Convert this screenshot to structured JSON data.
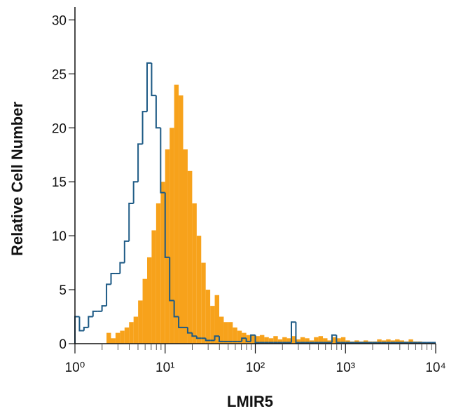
{
  "chart_data": {
    "type": "histogram",
    "xlabel": "LMIR5",
    "ylabel": "Relative Cell Number",
    "xscale": "log",
    "xlim": [
      1,
      10000
    ],
    "ylim": [
      0,
      31
    ],
    "xticks": [
      {
        "value": 1,
        "label": "10⁰"
      },
      {
        "value": 10,
        "label": "10¹"
      },
      {
        "value": 100,
        "label": "10²"
      },
      {
        "value": 1000,
        "label": "10³"
      },
      {
        "value": 10000,
        "label": "10⁴"
      }
    ],
    "yticks": [
      0,
      5,
      10,
      15,
      20,
      25,
      30
    ],
    "bins": [
      1,
      1.122,
      1.259,
      1.413,
      1.585,
      1.778,
      1.995,
      2.239,
      2.512,
      2.818,
      3.162,
      3.548,
      3.981,
      4.467,
      5.012,
      5.623,
      6.31,
      7.079,
      7.943,
      8.913,
      10,
      11.22,
      12.59,
      14.13,
      15.85,
      17.78,
      19.95,
      22.39,
      25.12,
      28.18,
      31.62,
      35.48,
      39.81,
      44.67,
      50.12,
      56.23,
      63.1,
      70.79,
      79.43,
      89.13,
      100,
      112.2,
      125.9,
      141.3,
      158.5,
      177.8,
      199.5,
      223.9,
      251.2,
      281.8,
      316.2,
      354.8,
      398.1,
      446.7,
      501.2,
      562.3,
      631,
      707.9,
      794.3,
      891.3,
      1000,
      1122,
      1259,
      1413,
      1585,
      1778,
      1995,
      2239,
      2512,
      2818,
      3162,
      3548,
      3981,
      4467,
      5012,
      5623,
      6310,
      7079,
      7943,
      8913,
      10000
    ],
    "series": [
      {
        "style": "filled",
        "color": "#f7a21b",
        "values": [
          0,
          0,
          0,
          0,
          0,
          0,
          0,
          1,
          0.5,
          1,
          1.2,
          1.5,
          2,
          2.5,
          4,
          6,
          8,
          10.5,
          13,
          15,
          18,
          20,
          24,
          23,
          18,
          16,
          13,
          10,
          7.5,
          5,
          3.5,
          4.5,
          2.5,
          2,
          2,
          1.5,
          1.2,
          1,
          0.8,
          0.8,
          0.7,
          0.8,
          0.6,
          0.5,
          0.7,
          0.4,
          0.6,
          0.5,
          0.7,
          0.4,
          0.6,
          0.5,
          0.3,
          0.6,
          0.7,
          0.5,
          0.3,
          0.6,
          0.5,
          0.6,
          0.3,
          0.2,
          0.3,
          0.2,
          0.3,
          0.2,
          0.2,
          0.4,
          0.3,
          0.4,
          0.3,
          0.4,
          0.3,
          0.2,
          0.4,
          0.2,
          0.2,
          0.1,
          0.1,
          0.1
        ]
      },
      {
        "style": "outline",
        "color": "#1d5a85",
        "values": [
          2.5,
          1.2,
          1.5,
          2.5,
          3,
          3,
          3.5,
          5.5,
          6.5,
          6.5,
          7.5,
          9.5,
          13,
          15,
          18.5,
          21.5,
          26,
          23,
          20,
          14,
          8,
          4,
          2.5,
          1.5,
          1.5,
          1,
          0.7,
          0.5,
          0.5,
          0.3,
          0.3,
          0.7,
          0.2,
          0.2,
          0.2,
          0.2,
          0.2,
          0.5,
          0.2,
          0.8,
          0.1,
          0.1,
          0.1,
          0.1,
          0.1,
          0.1,
          0.1,
          0.1,
          2,
          0.1,
          0.1,
          0.1,
          0.1,
          0.1,
          0.1,
          0.1,
          0.1,
          0.8,
          0.1,
          0.1,
          0.1,
          0.1,
          0.1,
          0.1,
          0.1,
          0.1,
          0.1,
          0.1,
          0.1,
          0.1,
          0.1,
          0.1,
          0.1,
          0.1,
          0.1,
          0.1,
          0.1,
          0.1,
          0.1,
          0.1
        ]
      }
    ]
  }
}
